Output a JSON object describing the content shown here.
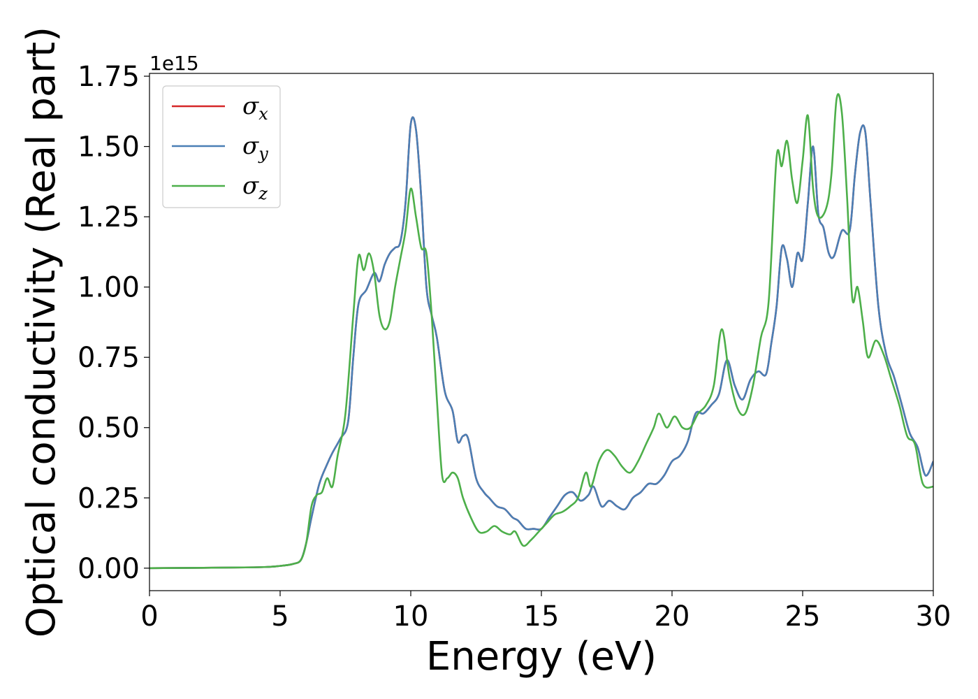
{
  "chart_data": {
    "type": "line",
    "xlabel": "Energy (eV)",
    "ylabel": "Optical conductivity (Real part)",
    "offset_text": "1e15",
    "xlim": [
      0,
      30
    ],
    "ylim": [
      -0.08,
      1.76
    ],
    "y_scale_factor": "1e15",
    "xticks": [
      0,
      5,
      10,
      15,
      20,
      25,
      30
    ],
    "xtick_labels": [
      "0",
      "5",
      "10",
      "15",
      "20",
      "25",
      "30"
    ],
    "yticks": [
      0.0,
      0.25,
      0.5,
      0.75,
      1.0,
      1.25,
      1.5,
      1.75
    ],
    "ytick_labels": [
      "0.00",
      "0.25",
      "0.50",
      "0.75",
      "1.00",
      "1.25",
      "1.50",
      "1.75"
    ],
    "grid": false,
    "legend_position": "top-left",
    "series": [
      {
        "name": "σx",
        "legend_base": "σ",
        "legend_sub": "x",
        "color": "#d62728",
        "x": [
          0,
          4,
          5,
          5.5,
          5.8,
          6.0,
          6.2,
          6.5,
          6.8,
          7.0,
          7.3,
          7.6,
          7.8,
          8.0,
          8.3,
          8.6,
          8.8,
          9.0,
          9.2,
          9.4,
          9.6,
          9.8,
          10.0,
          10.2,
          10.4,
          10.6,
          10.8,
          11.0,
          11.3,
          11.6,
          11.8,
          12.0,
          12.2,
          12.5,
          12.8,
          13.0,
          13.3,
          13.6,
          13.9,
          14.1,
          14.4,
          14.7,
          15.0,
          15.3,
          15.6,
          15.9,
          16.2,
          16.5,
          16.8,
          17.0,
          17.3,
          17.6,
          17.9,
          18.2,
          18.5,
          18.8,
          19.1,
          19.4,
          19.7,
          20.0,
          20.3,
          20.6,
          20.9,
          21.2,
          21.5,
          21.8,
          22.1,
          22.4,
          22.7,
          23.0,
          23.3,
          23.6,
          23.8,
          24.0,
          24.2,
          24.4,
          24.6,
          24.8,
          25.0,
          25.2,
          25.4,
          25.6,
          25.8,
          26.0,
          26.2,
          26.5,
          26.8,
          27.0,
          27.2,
          27.4,
          27.6,
          27.9,
          28.2,
          28.5,
          28.8,
          29.1,
          29.4,
          29.7,
          30.0
        ],
        "y": [
          0.0,
          0.003,
          0.008,
          0.015,
          0.03,
          0.09,
          0.18,
          0.3,
          0.37,
          0.41,
          0.46,
          0.52,
          0.75,
          0.94,
          0.99,
          1.05,
          1.02,
          1.08,
          1.12,
          1.14,
          1.16,
          1.3,
          1.58,
          1.56,
          1.32,
          1.0,
          0.9,
          0.82,
          0.63,
          0.56,
          0.45,
          0.47,
          0.46,
          0.32,
          0.27,
          0.25,
          0.22,
          0.21,
          0.18,
          0.17,
          0.14,
          0.14,
          0.14,
          0.18,
          0.22,
          0.26,
          0.27,
          0.24,
          0.26,
          0.29,
          0.22,
          0.24,
          0.22,
          0.21,
          0.25,
          0.27,
          0.3,
          0.3,
          0.33,
          0.38,
          0.4,
          0.45,
          0.55,
          0.55,
          0.58,
          0.62,
          0.74,
          0.65,
          0.6,
          0.67,
          0.7,
          0.69,
          0.8,
          0.93,
          1.14,
          1.1,
          1.0,
          1.12,
          1.1,
          1.3,
          1.5,
          1.26,
          1.21,
          1.12,
          1.11,
          1.2,
          1.2,
          1.4,
          1.55,
          1.55,
          1.3,
          0.93,
          0.76,
          0.68,
          0.58,
          0.48,
          0.43,
          0.33,
          0.38
        ]
      },
      {
        "name": "σy",
        "legend_base": "σ",
        "legend_sub": "y",
        "color": "#4a7fb5",
        "x": [
          0,
          4,
          5,
          5.5,
          5.8,
          6.0,
          6.2,
          6.5,
          6.8,
          7.0,
          7.3,
          7.6,
          7.8,
          8.0,
          8.3,
          8.6,
          8.8,
          9.0,
          9.2,
          9.4,
          9.6,
          9.8,
          10.0,
          10.2,
          10.4,
          10.6,
          10.8,
          11.0,
          11.3,
          11.6,
          11.8,
          12.0,
          12.2,
          12.5,
          12.8,
          13.0,
          13.3,
          13.6,
          13.9,
          14.1,
          14.4,
          14.7,
          15.0,
          15.3,
          15.6,
          15.9,
          16.2,
          16.5,
          16.8,
          17.0,
          17.3,
          17.6,
          17.9,
          18.2,
          18.5,
          18.8,
          19.1,
          19.4,
          19.7,
          20.0,
          20.3,
          20.6,
          20.9,
          21.2,
          21.5,
          21.8,
          22.1,
          22.4,
          22.7,
          23.0,
          23.3,
          23.6,
          23.8,
          24.0,
          24.2,
          24.4,
          24.6,
          24.8,
          25.0,
          25.2,
          25.4,
          25.6,
          25.8,
          26.0,
          26.2,
          26.5,
          26.8,
          27.0,
          27.2,
          27.4,
          27.6,
          27.9,
          28.2,
          28.5,
          28.8,
          29.1,
          29.4,
          29.7,
          30.0
        ],
        "y": [
          0.0,
          0.003,
          0.008,
          0.015,
          0.03,
          0.09,
          0.18,
          0.3,
          0.37,
          0.41,
          0.46,
          0.52,
          0.75,
          0.94,
          0.99,
          1.05,
          1.02,
          1.08,
          1.12,
          1.14,
          1.16,
          1.3,
          1.58,
          1.56,
          1.32,
          1.0,
          0.9,
          0.82,
          0.63,
          0.56,
          0.45,
          0.47,
          0.46,
          0.32,
          0.27,
          0.25,
          0.22,
          0.21,
          0.18,
          0.17,
          0.14,
          0.14,
          0.14,
          0.18,
          0.22,
          0.26,
          0.27,
          0.24,
          0.26,
          0.29,
          0.22,
          0.24,
          0.22,
          0.21,
          0.25,
          0.27,
          0.3,
          0.3,
          0.33,
          0.38,
          0.4,
          0.45,
          0.55,
          0.55,
          0.58,
          0.62,
          0.74,
          0.65,
          0.6,
          0.67,
          0.7,
          0.69,
          0.8,
          0.93,
          1.14,
          1.1,
          1.0,
          1.12,
          1.1,
          1.3,
          1.5,
          1.26,
          1.21,
          1.12,
          1.11,
          1.2,
          1.2,
          1.4,
          1.55,
          1.55,
          1.3,
          0.93,
          0.76,
          0.68,
          0.58,
          0.48,
          0.43,
          0.33,
          0.38
        ]
      },
      {
        "name": "σz",
        "legend_base": "σ",
        "legend_sub": "z",
        "color": "#4daf4a",
        "x": [
          0,
          4,
          5,
          5.5,
          5.8,
          6.0,
          6.2,
          6.4,
          6.6,
          6.8,
          7.0,
          7.2,
          7.5,
          7.8,
          8.0,
          8.2,
          8.4,
          8.6,
          8.8,
          9.0,
          9.2,
          9.4,
          9.6,
          9.8,
          10.0,
          10.2,
          10.4,
          10.6,
          10.8,
          11.0,
          11.2,
          11.4,
          11.6,
          11.8,
          12.0,
          12.3,
          12.6,
          12.9,
          13.2,
          13.5,
          13.8,
          14.0,
          14.3,
          14.6,
          14.9,
          15.2,
          15.5,
          15.8,
          16.1,
          16.4,
          16.7,
          16.9,
          17.2,
          17.5,
          17.8,
          18.1,
          18.4,
          18.7,
          19.0,
          19.3,
          19.5,
          19.8,
          20.1,
          20.4,
          20.7,
          21.0,
          21.3,
          21.6,
          21.9,
          22.2,
          22.5,
          22.8,
          23.1,
          23.4,
          23.7,
          24.0,
          24.2,
          24.4,
          24.6,
          24.8,
          25.0,
          25.2,
          25.4,
          25.6,
          25.9,
          26.1,
          26.3,
          26.5,
          26.7,
          26.9,
          27.1,
          27.3,
          27.5,
          27.8,
          28.1,
          28.4,
          28.7,
          29.0,
          29.3,
          29.6,
          30.0
        ],
        "y": [
          0.0,
          0.003,
          0.008,
          0.015,
          0.03,
          0.09,
          0.22,
          0.26,
          0.27,
          0.32,
          0.29,
          0.4,
          0.55,
          0.9,
          1.11,
          1.06,
          1.12,
          1.05,
          0.9,
          0.85,
          0.88,
          1.0,
          1.1,
          1.2,
          1.35,
          1.25,
          1.14,
          1.12,
          0.9,
          0.6,
          0.33,
          0.32,
          0.34,
          0.32,
          0.25,
          0.18,
          0.13,
          0.13,
          0.15,
          0.13,
          0.12,
          0.13,
          0.08,
          0.1,
          0.13,
          0.16,
          0.19,
          0.2,
          0.22,
          0.25,
          0.34,
          0.29,
          0.38,
          0.42,
          0.4,
          0.36,
          0.34,
          0.38,
          0.44,
          0.5,
          0.55,
          0.5,
          0.54,
          0.5,
          0.5,
          0.55,
          0.58,
          0.65,
          0.85,
          0.68,
          0.57,
          0.55,
          0.65,
          0.82,
          0.95,
          1.46,
          1.43,
          1.52,
          1.38,
          1.3,
          1.45,
          1.61,
          1.35,
          1.25,
          1.28,
          1.4,
          1.67,
          1.62,
          1.32,
          0.96,
          1.0,
          0.88,
          0.75,
          0.81,
          0.76,
          0.67,
          0.58,
          0.47,
          0.44,
          0.3,
          0.29
        ]
      }
    ]
  }
}
